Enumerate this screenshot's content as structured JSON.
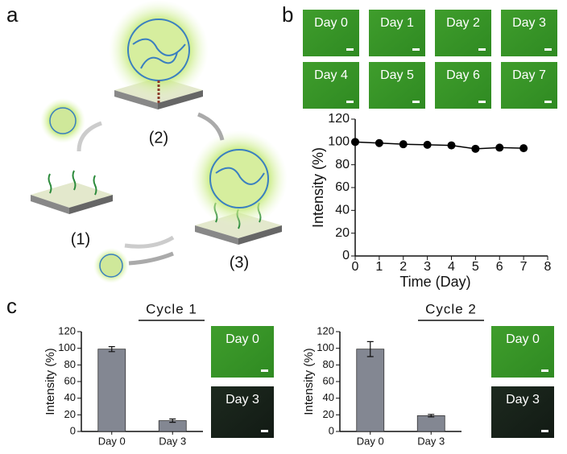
{
  "panel_labels": [
    "a",
    "b",
    "c"
  ],
  "diagram": {
    "steps": [
      "(1)",
      "(2)",
      "(3)"
    ]
  },
  "images_b": [
    "Day 0",
    "Day 1",
    "Day 2",
    "Day 3",
    "Day 4",
    "Day 5",
    "Day 6",
    "Day 7"
  ],
  "images_c": [
    [
      "Day 0",
      "Day 3"
    ],
    [
      "Day 0",
      "Day 3"
    ]
  ],
  "chart_data": [
    {
      "type": "line",
      "xlabel": "Time (Day)",
      "ylabel": "Intensity (%)",
      "x": [
        0,
        1,
        2,
        3,
        4,
        5,
        6,
        7
      ],
      "values": [
        100,
        99,
        98,
        97.5,
        97,
        94,
        95,
        94.5
      ],
      "color": "#000000",
      "xlim": [
        0,
        8
      ],
      "xticks": [
        0,
        1,
        2,
        3,
        4,
        5,
        6,
        7,
        8
      ],
      "ylim": [
        0,
        120
      ],
      "yticks": [
        0,
        20,
        40,
        60,
        80,
        100,
        120
      ]
    },
    {
      "type": "bar",
      "title": "Cycle 1",
      "ylabel": "Intensity (%)",
      "categories": [
        "Day 0",
        "Day 3"
      ],
      "values": [
        99,
        13
      ],
      "errors": [
        3,
        2
      ],
      "color": "#838792",
      "ylim": [
        0,
        120
      ],
      "yticks": [
        0,
        20,
        40,
        60,
        80,
        100,
        120
      ]
    },
    {
      "type": "bar",
      "title": "Cycle 2",
      "ylabel": "Intensity (%)",
      "categories": [
        "Day 0",
        "Day 3"
      ],
      "values": [
        99,
        19
      ],
      "errors": [
        9,
        1.5
      ],
      "color": "#838792",
      "ylim": [
        0,
        120
      ],
      "yticks": [
        0,
        20,
        40,
        60,
        80,
        100,
        120
      ]
    }
  ]
}
